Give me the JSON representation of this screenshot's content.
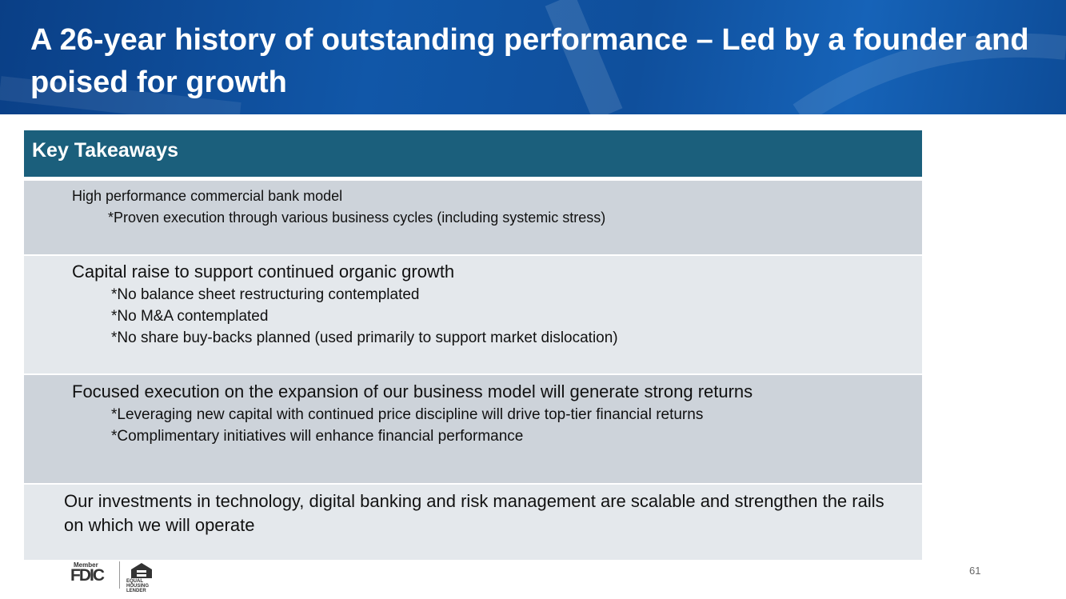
{
  "header": {
    "title": "A 26-year history of outstanding performance – Led by a founder and poised for growth"
  },
  "panel": {
    "title": "Key Takeaways",
    "rows": [
      {
        "heading": "High performance commercial bank model",
        "points": [
          "*Proven execution through various business cycles (including systemic stress)"
        ]
      },
      {
        "heading": "Capital raise to support continued organic growth",
        "points": [
          "*No balance sheet restructuring contemplated",
          "*No M&A contemplated",
          "*No share buy-backs planned (used primarily to support market dislocation)"
        ]
      },
      {
        "heading": "Focused execution on the expansion of our business model will generate strong returns",
        "points": [
          "*Leveraging new capital with continued price discipline will drive top-tier financial returns",
          "*Complimentary initiatives will enhance financial performance"
        ]
      },
      {
        "heading": "Our investments in technology, digital banking and risk management are scalable and strengthen the rails on which we will operate",
        "points": []
      }
    ]
  },
  "footer": {
    "page_number": 61,
    "fdic_member": "Member",
    "fdic": "FDIC",
    "housing": "EQUAL HOUSING LENDER"
  }
}
